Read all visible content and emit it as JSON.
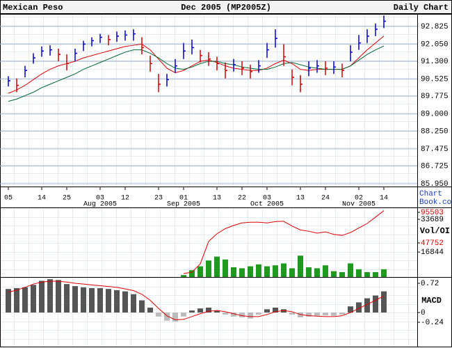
{
  "header": {
    "left": "Mexican Peso",
    "right": "Daily Chart"
  },
  "logo": {
    "line1": "Chart",
    "line2": "Book.com"
  },
  "chart_data": [
    {
      "type": "ohlc",
      "title": "Dec 2005 (MP2005Z)",
      "categories": [
        "05",
        null,
        null,
        null,
        "14",
        null,
        null,
        "25",
        null,
        null,
        null,
        "03",
        null,
        null,
        "12",
        null,
        null,
        null,
        "23",
        null,
        null,
        "01",
        null,
        null,
        null,
        "13",
        null,
        null,
        "22",
        null,
        null,
        "03",
        null,
        null,
        null,
        "13",
        null,
        null,
        "24",
        null,
        null,
        null,
        "02",
        null,
        null,
        "14"
      ],
      "months": [
        null,
        null,
        null,
        null,
        null,
        null,
        null,
        null,
        null,
        null,
        null,
        "Aug 2005",
        null,
        null,
        null,
        null,
        null,
        null,
        null,
        null,
        null,
        "Sep 2005",
        null,
        null,
        null,
        null,
        null,
        null,
        null,
        null,
        null,
        "Oct 2005",
        null,
        null,
        null,
        null,
        null,
        null,
        null,
        null,
        null,
        null,
        "Nov 2005",
        null,
        null,
        null
      ],
      "high": [
        90.65,
        90.55,
        91.1,
        91.65,
        91.95,
        92.0,
        91.85,
        91.6,
        91.85,
        92.2,
        92.35,
        92.5,
        92.45,
        92.6,
        92.65,
        92.7,
        92.35,
        91.55,
        90.75,
        90.75,
        91.4,
        92.1,
        92.25,
        91.8,
        91.7,
        91.5,
        91.25,
        91.4,
        91.3,
        91.15,
        91.35,
        92.1,
        92.7,
        92.05,
        90.95,
        90.7,
        91.3,
        91.35,
        91.3,
        91.3,
        91.2,
        92.0,
        92.45,
        92.7,
        92.95,
        93.3
      ],
      "low": [
        90.2,
        89.95,
        90.6,
        91.2,
        91.5,
        91.55,
        91.3,
        90.9,
        91.3,
        91.75,
        91.95,
        92.1,
        92.0,
        92.15,
        92.2,
        92.2,
        91.6,
        90.85,
        89.95,
        90.2,
        90.8,
        91.4,
        91.6,
        91.25,
        91.1,
        90.9,
        90.55,
        90.85,
        90.7,
        90.55,
        90.8,
        91.45,
        91.9,
        91.1,
        90.25,
        89.95,
        90.65,
        90.8,
        90.7,
        90.75,
        90.6,
        91.3,
        91.8,
        92.1,
        92.4,
        92.75
      ],
      "close": [
        90.45,
        90.25,
        90.9,
        91.45,
        91.75,
        91.8,
        91.6,
        91.2,
        91.65,
        92.05,
        92.2,
        92.35,
        92.25,
        92.4,
        92.45,
        92.5,
        91.9,
        91.2,
        90.3,
        90.5,
        91.1,
        91.75,
        91.9,
        91.55,
        91.4,
        91.2,
        90.9,
        91.15,
        91.0,
        90.85,
        91.1,
        91.8,
        92.3,
        91.5,
        90.6,
        90.3,
        91.0,
        91.1,
        91.0,
        91.05,
        90.9,
        91.7,
        92.1,
        92.4,
        92.7,
        93.05
      ],
      "up_color": "#0000cc",
      "down_color": "#cc0000",
      "averages": [
        {
          "color": "#dd0000",
          "values": [
            89.9,
            90.05,
            90.25,
            90.5,
            90.75,
            90.95,
            91.1,
            91.2,
            91.3,
            91.45,
            91.55,
            91.65,
            91.75,
            91.85,
            91.95,
            92.0,
            92.05,
            91.8,
            91.4,
            91.0,
            90.8,
            90.9,
            91.1,
            91.3,
            91.35,
            91.25,
            91.1,
            91.0,
            90.95,
            90.9,
            90.9,
            91.0,
            91.2,
            91.35,
            91.2,
            90.95,
            90.9,
            90.95,
            90.95,
            90.95,
            90.95,
            91.1,
            91.45,
            91.8,
            92.1,
            92.4
          ]
        },
        {
          "color": "#006633",
          "values": [
            89.55,
            89.65,
            89.8,
            89.95,
            90.15,
            90.3,
            90.45,
            90.6,
            90.75,
            90.95,
            91.1,
            91.25,
            91.4,
            91.55,
            91.7,
            91.8,
            91.8,
            91.65,
            91.45,
            91.2,
            91.0,
            90.95,
            91.05,
            91.2,
            91.3,
            91.3,
            91.2,
            91.15,
            91.05,
            91.0,
            90.95,
            90.95,
            91.05,
            91.2,
            91.25,
            91.15,
            91.05,
            91.0,
            90.95,
            90.95,
            90.95,
            91.1,
            91.35,
            91.6,
            91.8,
            91.97
          ]
        }
      ],
      "ylim": [
        85.83,
        93.37
      ],
      "yticks": [
        92.825,
        {
          "value": 92.05,
          "label": "92.050"
        },
        {
          "value": 91.3,
          "label": "91.300"
        },
        90.525,
        89.775,
        {
          "value": 89,
          "label": "89.000"
        },
        {
          "value": 88.25,
          "label": "88.250"
        },
        87.475,
        86.725,
        {
          "value": 85.95,
          "label": "85.950"
        }
      ],
      "grid": true
    },
    {
      "type": "bar",
      "label": "Vol/OI",
      "series": [
        {
          "color": "#1f9a1f",
          "values": [
            null,
            null,
            null,
            null,
            null,
            null,
            null,
            null,
            null,
            null,
            null,
            null,
            null,
            null,
            null,
            null,
            null,
            null,
            null,
            null,
            null,
            5000,
            7500,
            9500,
            12500,
            14500,
            13000,
            9000,
            8500,
            9500,
            10500,
            9500,
            10000,
            11000,
            8500,
            15000,
            9000,
            8500,
            10000,
            7000,
            6500,
            11000,
            8000,
            6500,
            6500,
            8000
          ]
        },
        {
          "color": "#dd0000",
          "type": "line",
          "axis": "y2",
          "values": [
            null,
            null,
            null,
            null,
            null,
            null,
            null,
            null,
            null,
            null,
            null,
            null,
            null,
            null,
            null,
            null,
            null,
            null,
            null,
            null,
            null,
            0,
            2000,
            15000,
            50000,
            62000,
            70000,
            75000,
            79000,
            80000,
            80000,
            79000,
            81000,
            81500,
            74000,
            68000,
            66000,
            63000,
            65000,
            61000,
            59500,
            64000,
            71000,
            78000,
            88000,
            98000
          ]
        }
      ],
      "ylim": [
        4000,
        39800
      ],
      "yticks": [
        33689,
        16844
      ],
      "y2lim": [
        -5400,
        103100
      ],
      "y2ticks": [
        95503,
        47752
      ],
      "y2_color": "#dd0000"
    },
    {
      "type": "bar",
      "label": "MACD",
      "series": [
        {
          "color": "#555555",
          "negative_color": "#bbbbbb",
          "values": [
            0.58,
            0.6,
            0.62,
            0.68,
            0.78,
            0.82,
            0.8,
            0.7,
            0.65,
            0.62,
            0.6,
            0.6,
            0.58,
            0.55,
            0.52,
            0.45,
            0.3,
            0.12,
            -0.1,
            -0.2,
            -0.22,
            -0.1,
            0.05,
            0.1,
            0.12,
            0.05,
            -0.05,
            -0.1,
            -0.12,
            -0.15,
            -0.05,
            0.08,
            0.12,
            0.08,
            -0.05,
            -0.12,
            -0.1,
            -0.08,
            -0.07,
            -0.08,
            -0.05,
            0.15,
            0.25,
            0.35,
            0.42,
            0.52
          ]
        },
        {
          "color": "#dd0000",
          "type": "line",
          "values": [
            0.5,
            0.55,
            0.62,
            0.7,
            0.75,
            0.77,
            0.77,
            0.75,
            0.72,
            0.7,
            0.68,
            0.66,
            0.64,
            0.62,
            0.58,
            0.54,
            0.45,
            0.3,
            0.1,
            -0.08,
            -0.18,
            -0.17,
            -0.1,
            -0.03,
            0.03,
            0.05,
            0.02,
            -0.03,
            -0.08,
            -0.1,
            -0.1,
            -0.05,
            0.02,
            0.05,
            0.02,
            -0.05,
            -0.08,
            -0.09,
            -0.1,
            -0.1,
            -0.08,
            0.0,
            0.1,
            0.2,
            0.3,
            0.41
          ]
        }
      ],
      "ylim": [
        -0.84,
        0.84
      ],
      "yticks": [
        0.72,
        0,
        -0.24
      ]
    }
  ]
}
